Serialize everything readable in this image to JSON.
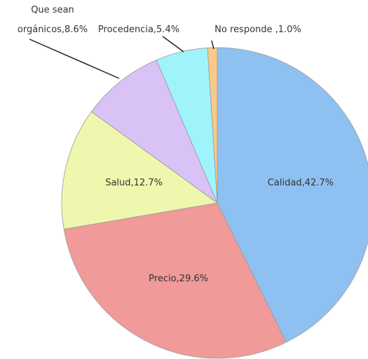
{
  "chart_data": {
    "type": "pie",
    "values": [
      42.7,
      29.6,
      12.7,
      8.6,
      5.4,
      1.0
    ],
    "value_labels": [
      "Calidad,42.7%",
      "Precio,29.6%",
      "Salud,12.7%",
      "Que sean orgánicos,8.6%",
      "Procedencia,5.4%",
      "No responde ,1.0%"
    ],
    "colors": [
      "#8fc0f2",
      "#f09a9a",
      "#eef7ad",
      "#d8c2f6",
      "#9ff4fb",
      "#f9c98a"
    ]
  }
}
